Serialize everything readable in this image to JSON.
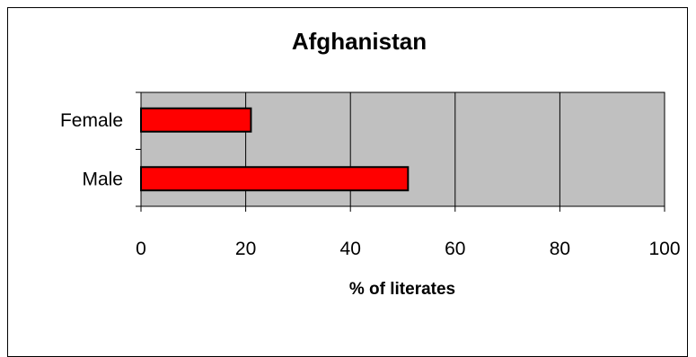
{
  "chart_data": {
    "type": "bar",
    "orientation": "horizontal",
    "title": "Afghanistan",
    "xlabel": "% of literates",
    "ylabel": "",
    "categories": [
      "Female",
      "Male"
    ],
    "values": [
      21,
      51
    ],
    "xlim": [
      0,
      100
    ],
    "xticks": [
      0,
      20,
      40,
      60,
      80,
      100
    ],
    "grid": true,
    "legend": "none",
    "colors": {
      "bar_fill": "#ff0000",
      "bar_edge": "#000000",
      "plot_background": "#c0c0c0",
      "gridline": "#000000"
    }
  }
}
